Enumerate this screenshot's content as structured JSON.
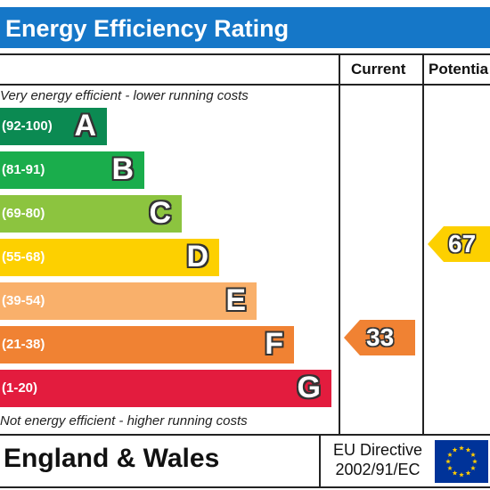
{
  "title": "Energy Efficiency Rating",
  "columns": {
    "current": "Current",
    "potential": "Potentia"
  },
  "notes": {
    "top": "Very energy efficient - lower running costs",
    "bottom": "Not energy efficient - higher running costs"
  },
  "bands": [
    {
      "range": "(92-100)",
      "letter": "A",
      "color": "#0b8a52"
    },
    {
      "range": "(81-91)",
      "letter": "B",
      "color": "#1aad4c"
    },
    {
      "range": "(69-80)",
      "letter": "C",
      "color": "#8cc43f"
    },
    {
      "range": "(55-68)",
      "letter": "D",
      "color": "#fdd000"
    },
    {
      "range": "(39-54)",
      "letter": "E",
      "color": "#f9b06b"
    },
    {
      "range": "(21-38)",
      "letter": "F",
      "color": "#f08233"
    },
    {
      "range": "(1-20)",
      "letter": "G",
      "color": "#e31c3e"
    }
  ],
  "ratings": {
    "current": {
      "value": "33",
      "band": "F",
      "color": "#f08233"
    },
    "potential": {
      "value": "67",
      "band": "D",
      "color": "#fdd000"
    }
  },
  "footer": {
    "country": "England & Wales",
    "directive_line1": "EU Directive",
    "directive_line2": "2002/91/EC",
    "flag_icon": "eu-flag-icon",
    "flag_color": "#003399",
    "star_color": "#ffcc00"
  }
}
